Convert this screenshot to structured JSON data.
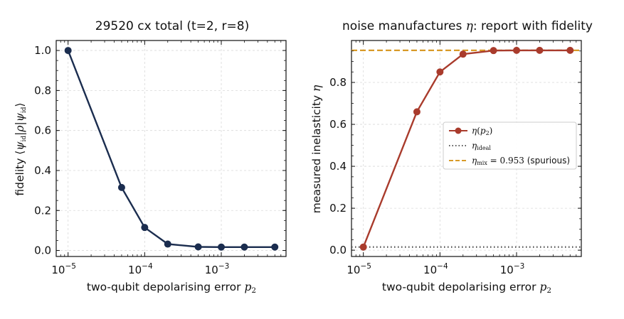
{
  "chart_data": [
    {
      "type": "line",
      "title": "29520 cx total (t=2, r=8)",
      "xlabel": "two-qubit depolarising error p2",
      "ylabel": "fidelity ⟨ψid|ρ|ψid⟩",
      "xscale": "log",
      "xlim": [
        7e-06,
        0.007
      ],
      "ylim": [
        -0.03,
        1.05
      ],
      "xticks": [
        {
          "value": 1e-05,
          "base": "10",
          "exp": "−5"
        },
        {
          "value": 0.0001,
          "base": "10",
          "exp": "−4"
        },
        {
          "value": 0.001,
          "base": "10",
          "exp": "−3"
        }
      ],
      "yticks": [
        {
          "value": 0.0,
          "label": "0.0"
        },
        {
          "value": 0.2,
          "label": "0.2"
        },
        {
          "value": 0.4,
          "label": "0.4"
        },
        {
          "value": 0.6,
          "label": "0.6"
        },
        {
          "value": 0.8,
          "label": "0.8"
        },
        {
          "value": 1.0,
          "label": "1.0"
        }
      ],
      "grid": true,
      "series": [
        {
          "color": "#1b2d4f",
          "x": [
            1e-05,
            5e-05,
            0.0001,
            0.0002,
            0.0005,
            0.001,
            0.002,
            0.005
          ],
          "y": [
            1.0,
            0.315,
            0.115,
            0.032,
            0.018,
            0.017,
            0.017,
            0.017
          ]
        }
      ]
    },
    {
      "type": "line",
      "title": "noise manufactures η: report with fidelity",
      "xlabel": "two-qubit depolarising error p2",
      "ylabel": "measured inelasticity η",
      "xscale": "log",
      "xlim": [
        7e-06,
        0.007
      ],
      "ylim": [
        -0.03,
        1.0
      ],
      "xticks": [
        {
          "value": 1e-05,
          "base": "10",
          "exp": "−5"
        },
        {
          "value": 0.0001,
          "base": "10",
          "exp": "−4"
        },
        {
          "value": 0.001,
          "base": "10",
          "exp": "−3"
        }
      ],
      "yticks": [
        {
          "value": 0.0,
          "label": "0.0"
        },
        {
          "value": 0.2,
          "label": "0.2"
        },
        {
          "value": 0.4,
          "label": "0.4"
        },
        {
          "value": 0.6,
          "label": "0.6"
        },
        {
          "value": 0.8,
          "label": "0.8"
        }
      ],
      "grid": true,
      "legend_position": "center-right",
      "series": [
        {
          "name": "η(p2)",
          "color": "#a93b2c",
          "x": [
            1e-05,
            5e-05,
            0.0001,
            0.0002,
            0.0005,
            0.001,
            0.002,
            0.005
          ],
          "y": [
            0.015,
            0.66,
            0.85,
            0.935,
            0.952,
            0.953,
            0.953,
            0.953
          ]
        }
      ],
      "hlines": [
        {
          "name": "ηideal",
          "y": 0.015,
          "color": "#555555",
          "style": "dotted"
        },
        {
          "name": "ηmix = 0.953 (spurious)",
          "y": 0.953,
          "color": "#d89a28",
          "style": "dashed"
        }
      ],
      "legend": [
        {
          "label": "η(p2)",
          "color": "#a93b2c",
          "style": "line-marker"
        },
        {
          "label": "ηideal",
          "color": "#555555",
          "style": "dotted"
        },
        {
          "label": "ηmix = 0.953 (spurious)",
          "color": "#d89a28",
          "style": "dashed"
        }
      ]
    }
  ]
}
